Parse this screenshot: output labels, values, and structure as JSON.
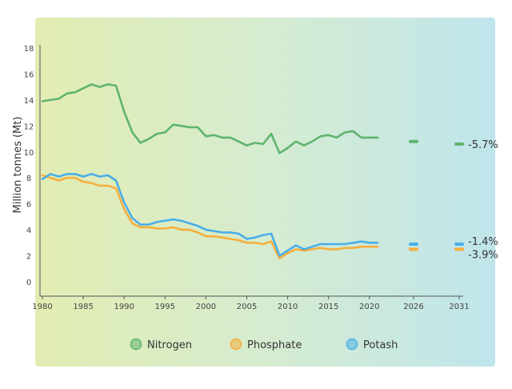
{
  "chart_data": {
    "type": "line",
    "title": "",
    "xlabel": "",
    "ylabel": "Million tonnes (Mt)",
    "ylim": [
      0,
      18
    ],
    "yticks": [
      "0",
      "2",
      "4",
      "6",
      "8",
      "10",
      "12",
      "14",
      "16",
      "18"
    ],
    "xticks": [
      "1980",
      "1985",
      "1990",
      "1995",
      "2000",
      "2005",
      "2010",
      "2015",
      "2020",
      "2026",
      "2031"
    ],
    "grid": false,
    "legend": "bottom",
    "series": [
      {
        "name": "Nitrogen",
        "color": "#5fb46f",
        "x": [
          1980,
          1981,
          1982,
          1983,
          1984,
          1985,
          1986,
          1987,
          1988,
          1989,
          1990,
          1991,
          1992,
          1993,
          1994,
          1995,
          1996,
          1997,
          1998,
          1999,
          2000,
          2001,
          2002,
          2003,
          2004,
          2005,
          2006,
          2007,
          2008,
          2009,
          2010,
          2011,
          2012,
          2013,
          2014,
          2015,
          2016,
          2017,
          2018,
          2019,
          2020,
          2021
        ],
        "y": [
          13.9,
          14.0,
          14.1,
          14.5,
          14.6,
          14.9,
          15.2,
          15.0,
          15.2,
          15.1,
          13.1,
          11.5,
          10.7,
          11.0,
          11.4,
          11.5,
          12.1,
          12.0,
          11.9,
          11.9,
          11.2,
          11.3,
          11.1,
          11.1,
          10.8,
          10.5,
          10.7,
          10.6,
          11.4,
          9.9,
          10.3,
          10.8,
          10.5,
          10.8,
          11.2,
          11.3,
          11.1,
          11.5,
          11.6,
          11.1,
          11.1,
          11.1
        ],
        "projections": [
          {
            "x": 2026,
            "y": 10.8
          },
          {
            "x": 2031,
            "y": 10.6
          }
        ],
        "change_label": "-5.7%"
      },
      {
        "name": "Phosphate",
        "color": "#f5ae3d",
        "x": [
          1980,
          1981,
          1982,
          1983,
          1984,
          1985,
          1986,
          1987,
          1988,
          1989,
          1990,
          1991,
          1992,
          1993,
          1994,
          1995,
          1996,
          1997,
          1998,
          1999,
          2000,
          2001,
          2002,
          2003,
          2004,
          2005,
          2006,
          2007,
          2008,
          2009,
          2010,
          2011,
          2012,
          2013,
          2014,
          2015,
          2016,
          2017,
          2018,
          2019,
          2020,
          2021
        ],
        "y": [
          8.2,
          8.0,
          7.8,
          8.0,
          8.0,
          7.7,
          7.6,
          7.4,
          7.4,
          7.2,
          5.6,
          4.5,
          4.2,
          4.2,
          4.1,
          4.1,
          4.2,
          4.0,
          4.0,
          3.8,
          3.5,
          3.5,
          3.4,
          3.3,
          3.2,
          3.0,
          3.0,
          2.9,
          3.1,
          1.8,
          2.2,
          2.5,
          2.4,
          2.5,
          2.6,
          2.5,
          2.5,
          2.6,
          2.6,
          2.7,
          2.7,
          2.7
        ],
        "projections": [
          {
            "x": 2026,
            "y": 2.5
          },
          {
            "x": 2031,
            "y": 2.5
          }
        ],
        "change_label": "-3.9%"
      },
      {
        "name": "Potash",
        "color": "#4aaee8",
        "x": [
          1980,
          1981,
          1982,
          1983,
          1984,
          1985,
          1986,
          1987,
          1988,
          1989,
          1990,
          1991,
          1992,
          1993,
          1994,
          1995,
          1996,
          1997,
          1998,
          1999,
          2000,
          2001,
          2002,
          2003,
          2004,
          2005,
          2006,
          2007,
          2008,
          2009,
          2010,
          2011,
          2012,
          2013,
          2014,
          2015,
          2016,
          2017,
          2018,
          2019,
          2020,
          2021
        ],
        "y": [
          7.9,
          8.3,
          8.1,
          8.3,
          8.3,
          8.1,
          8.3,
          8.1,
          8.2,
          7.8,
          6.1,
          4.9,
          4.4,
          4.4,
          4.6,
          4.7,
          4.8,
          4.7,
          4.5,
          4.3,
          4.0,
          3.9,
          3.8,
          3.8,
          3.7,
          3.3,
          3.4,
          3.6,
          3.7,
          2.0,
          2.4,
          2.8,
          2.5,
          2.7,
          2.9,
          2.9,
          2.9,
          2.9,
          3.0,
          3.1,
          3.0,
          3.0
        ],
        "projections": [
          {
            "x": 2026,
            "y": 2.9
          },
          {
            "x": 2031,
            "y": 2.9
          }
        ],
        "change_label": "-1.4%"
      }
    ]
  }
}
